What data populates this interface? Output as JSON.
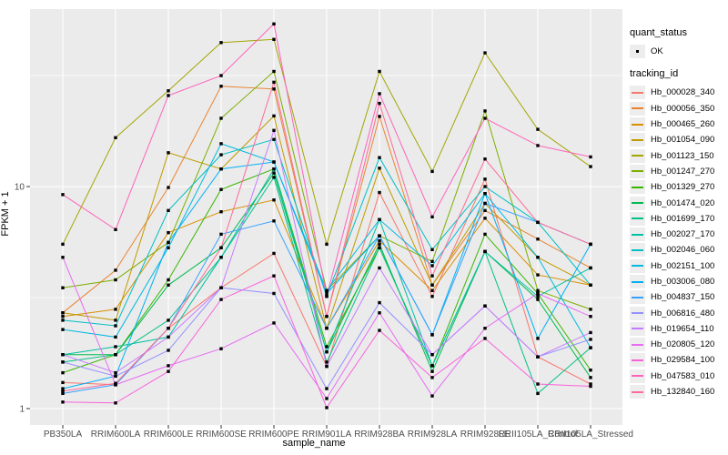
{
  "chart_data": {
    "type": "line",
    "xlabel": "sample_name",
    "ylabel": "FPKM + 1",
    "y_scale": "log10",
    "y_ticks": [
      1,
      10
    ],
    "ylim": [
      0.9,
      63
    ],
    "grid": true,
    "panel_bg": "#ebebeb",
    "grid_color": "#ffffff",
    "point_color": "#000000",
    "point_shape": "square",
    "axis_text_color": "#4d4d4d",
    "categories": [
      "PB350LA",
      "RRIM600LA",
      "RRIM600LE",
      "RRIM600SE",
      "RRIM600PE",
      "RRIM901LA",
      "RRIM928BA",
      "RRIM928LA",
      "RRIM928LE",
      "RRII105LA_Control",
      "RRII105LA_Stressed"
    ],
    "legend": {
      "quant_status_title": "quant_status",
      "quant_status_items": [
        {
          "label": "OK",
          "shape": "square",
          "color": "#000000"
        }
      ],
      "tracking_title": "tracking_id",
      "position": "right"
    },
    "series": [
      {
        "name": "Hb_000028_340",
        "color": "#F8766D",
        "values": [
          1.31,
          1.28,
          2.3,
          3.5,
          5.0,
          1.55,
          9.4,
          3.2,
          10.8,
          1.71,
          1.29
        ]
      },
      {
        "name": "Hb_000056_350",
        "color": "#EA8331",
        "values": [
          2.7,
          4.2,
          9.9,
          28.3,
          27.5,
          2.6,
          20.7,
          3.6,
          7.8,
          5.8,
          4.3
        ]
      },
      {
        "name": "Hb_000465_260",
        "color": "#D89000",
        "values": [
          2.6,
          2.8,
          6.2,
          7.7,
          8.7,
          2.3,
          5.7,
          3.4,
          7.2,
          4.0,
          3.6
        ]
      },
      {
        "name": "Hb_001054_090",
        "color": "#C09B00",
        "values": [
          2.7,
          2.5,
          14.2,
          12.0,
          20.8,
          2.3,
          12.1,
          3.6,
          8.4,
          4.8,
          3.6
        ]
      },
      {
        "name": "Hb_001123_150",
        "color": "#A3A500",
        "values": [
          5.5,
          16.6,
          27.0,
          44.5,
          46.0,
          5.5,
          33.0,
          11.7,
          40.0,
          18.1,
          12.3
        ]
      },
      {
        "name": "Hb_001247_270",
        "color": "#7CAE00",
        "values": [
          3.5,
          3.8,
          5.6,
          20.3,
          33.0,
          3.4,
          6.0,
          4.6,
          21.9,
          3.4,
          2.8
        ]
      },
      {
        "name": "Hb_001329_270",
        "color": "#39B600",
        "values": [
          1.45,
          1.75,
          3.8,
          9.7,
          12.0,
          1.9,
          5.3,
          1.56,
          6.1,
          3.3,
          1.49
        ]
      },
      {
        "name": "Hb_001474_020",
        "color": "#00BB4E",
        "values": [
          1.75,
          1.75,
          3.6,
          5.3,
          11.5,
          1.8,
          5.5,
          1.47,
          5.1,
          3.1,
          1.38
        ]
      },
      {
        "name": "Hb_001699_170",
        "color": "#00C087",
        "values": [
          1.62,
          1.75,
          2.5,
          4.8,
          11.0,
          1.62,
          5.3,
          1.56,
          5.1,
          1.17,
          1.88
        ]
      },
      {
        "name": "Hb_002027_170",
        "color": "#00C1A3",
        "values": [
          1.75,
          1.9,
          2.1,
          4.8,
          12.0,
          1.8,
          7.1,
          1.56,
          5.1,
          3.2,
          4.3
        ]
      },
      {
        "name": "Hb_002046_060",
        "color": "#00BFC4",
        "values": [
          2.5,
          2.36,
          7.8,
          13.9,
          16.3,
          3.2,
          13.5,
          5.2,
          10.0,
          6.9,
          3.6
        ]
      },
      {
        "name": "Hb_002151_100",
        "color": "#00BAE0",
        "values": [
          2.27,
          2.1,
          5.3,
          15.6,
          12.9,
          3.4,
          7.1,
          4.4,
          9.3,
          4.8,
          1.88
        ]
      },
      {
        "name": "Hb_003006_080",
        "color": "#00B0F6",
        "values": [
          1.23,
          1.4,
          5.6,
          12.0,
          12.9,
          3.3,
          6.0,
          2.15,
          9.3,
          2.07,
          5.5
        ]
      },
      {
        "name": "Hb_004837_150",
        "color": "#35A2FF",
        "values": [
          1.17,
          1.28,
          2.3,
          6.1,
          7.0,
          2.3,
          6.0,
          2.15,
          8.4,
          6.9,
          5.5
        ]
      },
      {
        "name": "Hb_006816_480",
        "color": "#9590FF",
        "values": [
          1.62,
          1.4,
          1.83,
          3.5,
          3.3,
          1.23,
          3.0,
          1.75,
          2.9,
          1.71,
          2.05
        ]
      },
      {
        "name": "Hb_019654_110",
        "color": "#C77CFF",
        "values": [
          1.75,
          1.45,
          2.1,
          3.5,
          17.9,
          1.55,
          4.3,
          1.75,
          2.9,
          1.71,
          2.2
        ]
      },
      {
        "name": "Hb_020805_120",
        "color": "#E76BF3",
        "values": [
          4.8,
          1.28,
          1.56,
          1.86,
          2.43,
          1.11,
          2.7,
          1.14,
          2.3,
          3.3,
          2.6
        ]
      },
      {
        "name": "Hb_029584_100",
        "color": "#FA62DB",
        "values": [
          1.07,
          1.06,
          1.47,
          3.1,
          3.96,
          1.01,
          2.25,
          1.38,
          2.07,
          1.29,
          1.26
        ]
      },
      {
        "name": "Hb_047583_010",
        "color": "#FF62BC",
        "values": [
          9.2,
          6.4,
          25.7,
          31.6,
          54.0,
          3.2,
          26.2,
          7.3,
          20.3,
          15.3,
          13.6
        ]
      },
      {
        "name": "Hb_132840_160",
        "color": "#FF6A98",
        "values": [
          1.2,
          1.3,
          2.3,
          5.3,
          29.5,
          2.6,
          23.7,
          3.96,
          13.3,
          6.9,
          5.5
        ]
      }
    ]
  }
}
